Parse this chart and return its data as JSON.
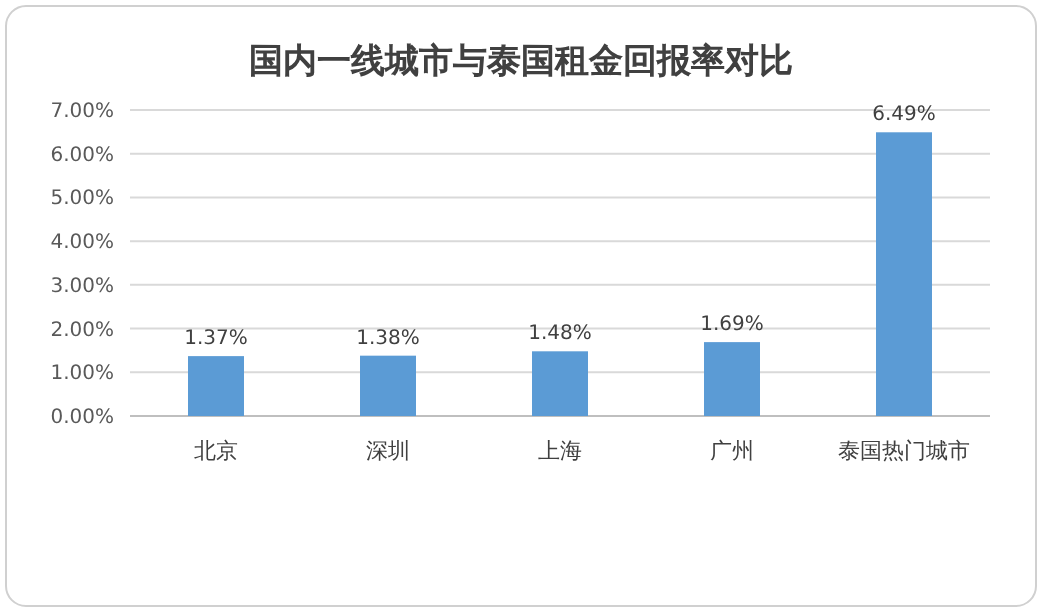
{
  "chart_data": {
    "type": "bar",
    "title": "国内一线城市与泰国租金回报率对比",
    "categories": [
      "北京",
      "深圳",
      "上海",
      "广州",
      "泰国热门城市"
    ],
    "values": [
      1.37,
      1.38,
      1.48,
      1.69,
      6.49
    ],
    "value_labels": [
      "1.37%",
      "1.38%",
      "1.48%",
      "1.69%",
      "6.49%"
    ],
    "color": "#5b9bd5",
    "ylim": [
      0,
      7
    ],
    "yticks": [
      {
        "value": 0,
        "label": "0.00%"
      },
      {
        "value": 1,
        "label": "1.00%"
      },
      {
        "value": 2,
        "label": "2.00%"
      },
      {
        "value": 3,
        "label": "3.00%"
      },
      {
        "value": 4,
        "label": "4.00%"
      },
      {
        "value": 5,
        "label": "5.00%"
      },
      {
        "value": 6,
        "label": "6.00%"
      },
      {
        "value": 7,
        "label": "7.00%"
      }
    ],
    "grid": "y"
  }
}
